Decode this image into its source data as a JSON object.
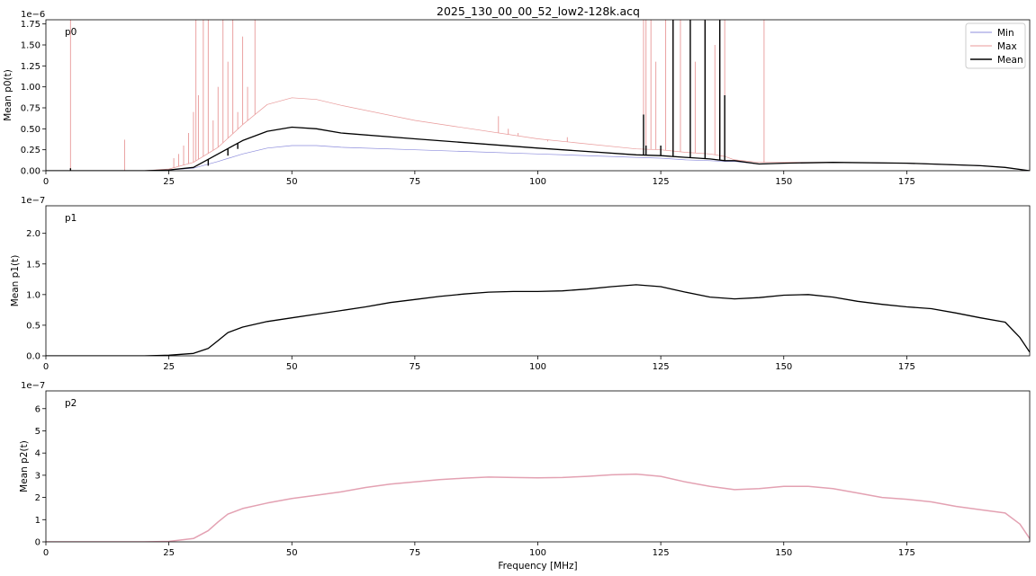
{
  "figure": {
    "title": "2025_130_00_00_52_low2-128k.acq"
  },
  "legend": {
    "entries": [
      "Min",
      "Max",
      "Mean"
    ]
  },
  "colors": {
    "min": "#8c8cdc",
    "max": "#e89898",
    "mean": "#000000",
    "p2_line": "#e3a1b2",
    "axis": "#000000"
  },
  "chart_data": [
    {
      "type": "line",
      "panel_label": "p0",
      "xlabel": "",
      "ylabel": "Mean p0(t)",
      "y_exponent": "1e−6",
      "xlim": [
        0,
        200
      ],
      "ylim": [
        0,
        1.8
      ],
      "xticks": [
        0,
        25,
        50,
        75,
        100,
        125,
        150,
        175
      ],
      "yticks": [
        0,
        0.25,
        0.5,
        0.75,
        1.0,
        1.25,
        1.5,
        1.75
      ],
      "ytick_labels": [
        "0.00",
        "0.25",
        "0.50",
        "0.75",
        "1.00",
        "1.25",
        "1.50",
        "1.75"
      ],
      "legend_position": "top-right",
      "series": [
        {
          "name": "Min",
          "x": [
            0,
            20,
            25,
            30,
            35,
            40,
            45,
            50,
            55,
            60,
            75,
            100,
            120,
            125,
            130,
            135,
            138,
            140,
            145,
            150,
            160,
            175,
            190,
            195,
            200
          ],
          "y": [
            0,
            0,
            0.01,
            0.03,
            0.11,
            0.2,
            0.27,
            0.3,
            0.3,
            0.28,
            0.25,
            0.2,
            0.16,
            0.15,
            0.13,
            0.12,
            0.11,
            0.11,
            0.08,
            0.09,
            0.1,
            0.09,
            0.06,
            0.04,
            0
          ]
        },
        {
          "name": "Max",
          "x": [
            0,
            20,
            25,
            30,
            35,
            40,
            45,
            50,
            55,
            60,
            75,
            100,
            120,
            125,
            130,
            135,
            138,
            140,
            145,
            150,
            160,
            175,
            190,
            195,
            200
          ],
          "y": [
            0,
            0,
            0.02,
            0.1,
            0.28,
            0.55,
            0.79,
            0.87,
            0.85,
            0.78,
            0.6,
            0.38,
            0.26,
            0.25,
            0.22,
            0.2,
            0.17,
            0.13,
            0.1,
            0.1,
            0.1,
            0.09,
            0.06,
            0.04,
            0
          ]
        },
        {
          "name": "Mean",
          "x": [
            0,
            20,
            25,
            30,
            35,
            40,
            45,
            50,
            55,
            60,
            75,
            100,
            120,
            125,
            130,
            135,
            138,
            140,
            145,
            150,
            160,
            175,
            190,
            195,
            200
          ],
          "y": [
            0,
            0,
            0.01,
            0.04,
            0.2,
            0.36,
            0.47,
            0.52,
            0.5,
            0.45,
            0.38,
            0.27,
            0.19,
            0.18,
            0.16,
            0.14,
            0.12,
            0.12,
            0.08,
            0.09,
            0.1,
            0.09,
            0.06,
            0.04,
            0
          ]
        }
      ],
      "spikes": {
        "Max": [
          [
            5,
            1.8
          ],
          [
            16,
            0.37
          ],
          [
            26,
            0.15
          ],
          [
            27,
            0.2
          ],
          [
            28,
            0.3
          ],
          [
            29,
            0.45
          ],
          [
            30,
            0.7
          ],
          [
            30.5,
            1.8
          ],
          [
            31,
            0.9
          ],
          [
            32,
            1.8
          ],
          [
            33,
            1.8
          ],
          [
            34,
            0.6
          ],
          [
            35,
            1.0
          ],
          [
            36,
            1.8
          ],
          [
            37,
            1.3
          ],
          [
            38,
            1.8
          ],
          [
            39,
            0.7
          ],
          [
            40,
            1.6
          ],
          [
            41,
            1.0
          ],
          [
            42.5,
            1.8
          ],
          [
            92,
            0.65
          ],
          [
            94,
            0.5
          ],
          [
            96,
            0.45
          ],
          [
            102,
            0.35
          ],
          [
            106,
            0.4
          ],
          [
            121.5,
            1.8
          ],
          [
            122,
            1.8
          ],
          [
            123,
            1.8
          ],
          [
            124,
            1.3
          ],
          [
            126,
            1.8
          ],
          [
            127.5,
            1.8
          ],
          [
            129,
            1.8
          ],
          [
            131,
            1.8
          ],
          [
            132,
            1.3
          ],
          [
            134,
            1.8
          ],
          [
            136,
            1.5
          ],
          [
            137,
            1.8
          ],
          [
            138,
            1.8
          ],
          [
            146,
            1.8
          ]
        ],
        "Mean": [
          [
            5,
            0.03
          ],
          [
            33,
            0.06
          ],
          [
            37,
            0.18
          ],
          [
            39,
            0.26
          ],
          [
            121.5,
            0.67
          ],
          [
            122,
            0.3
          ],
          [
            125,
            0.3
          ],
          [
            127.5,
            1.8
          ],
          [
            131,
            1.8
          ],
          [
            134,
            1.8
          ],
          [
            137,
            1.8
          ],
          [
            138,
            0.9
          ]
        ]
      }
    },
    {
      "type": "line",
      "panel_label": "p1",
      "xlabel": "",
      "ylabel": "Mean p1(t)",
      "y_exponent": "1e−7",
      "xlim": [
        0,
        200
      ],
      "ylim": [
        0,
        2.45
      ],
      "xticks": [
        0,
        25,
        50,
        75,
        100,
        125,
        150,
        175
      ],
      "yticks": [
        0,
        0.5,
        1.0,
        1.5,
        2.0
      ],
      "ytick_labels": [
        "0.0",
        "0.5",
        "1.0",
        "1.5",
        "2.0"
      ],
      "series": [
        {
          "name": "Mean",
          "x": [
            0,
            20,
            25,
            30,
            33,
            35,
            37,
            40,
            45,
            50,
            55,
            60,
            65,
            70,
            75,
            80,
            85,
            90,
            95,
            100,
            105,
            110,
            115,
            120,
            125,
            130,
            135,
            140,
            145,
            150,
            155,
            160,
            165,
            170,
            175,
            180,
            185,
            190,
            195,
            198,
            200
          ],
          "y": [
            0,
            0,
            0.01,
            0.04,
            0.12,
            0.25,
            0.38,
            0.47,
            0.56,
            0.62,
            0.68,
            0.74,
            0.8,
            0.87,
            0.92,
            0.97,
            1.01,
            1.04,
            1.05,
            1.05,
            1.06,
            1.09,
            1.13,
            1.16,
            1.13,
            1.04,
            0.96,
            0.93,
            0.95,
            0.99,
            1.0,
            0.96,
            0.89,
            0.84,
            0.8,
            0.77,
            0.7,
            0.62,
            0.55,
            0.3,
            0.06
          ]
        }
      ]
    },
    {
      "type": "line",
      "panel_label": "p2",
      "xlabel": "Frequency [MHz]",
      "ylabel": "Mean p2(t)",
      "y_exponent": "1e−7",
      "xlim": [
        0,
        200
      ],
      "ylim": [
        0,
        6.8
      ],
      "xticks": [
        0,
        25,
        50,
        75,
        100,
        125,
        150,
        175
      ],
      "yticks": [
        0,
        1,
        2,
        3,
        4,
        5,
        6
      ],
      "ytick_labels": [
        "0",
        "1",
        "2",
        "3",
        "4",
        "5",
        "6"
      ],
      "series": [
        {
          "x": [
            0,
            20,
            25,
            30,
            33,
            35,
            37,
            40,
            45,
            50,
            55,
            60,
            65,
            70,
            75,
            80,
            85,
            90,
            95,
            100,
            105,
            110,
            115,
            120,
            125,
            130,
            135,
            140,
            145,
            150,
            155,
            160,
            165,
            170,
            175,
            180,
            185,
            190,
            195,
            198,
            200
          ],
          "y": [
            0,
            0,
            0.02,
            0.15,
            0.5,
            0.9,
            1.25,
            1.5,
            1.75,
            1.95,
            2.1,
            2.25,
            2.45,
            2.6,
            2.7,
            2.8,
            2.87,
            2.92,
            2.9,
            2.88,
            2.9,
            2.95,
            3.02,
            3.05,
            2.95,
            2.7,
            2.5,
            2.35,
            2.4,
            2.5,
            2.5,
            2.4,
            2.2,
            2.0,
            1.92,
            1.8,
            1.6,
            1.45,
            1.3,
            0.8,
            0.15
          ]
        }
      ]
    }
  ]
}
